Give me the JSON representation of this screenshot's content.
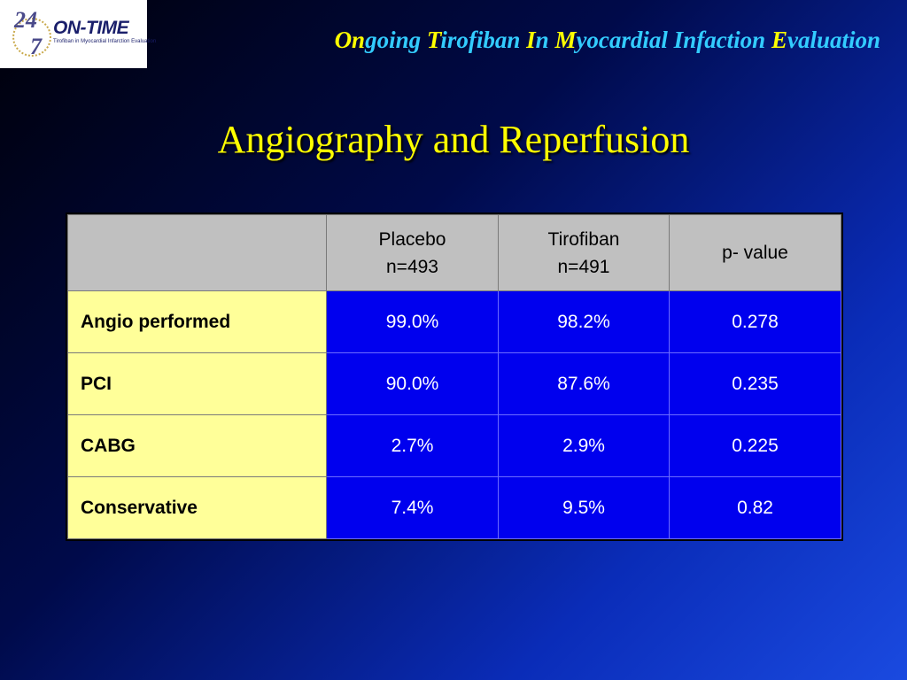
{
  "logo": {
    "number_top": "24",
    "number_bottom": "7",
    "brand": "ON-TIME",
    "tagline": "Tirofiban in Myocardial Infarction Evaluation"
  },
  "acronym": [
    {
      "cap": "On",
      "rest": "going "
    },
    {
      "cap": "T",
      "rest": "irofiban "
    },
    {
      "cap": "I",
      "rest": "n "
    },
    {
      "cap": "M",
      "rest": "yocardial Infaction "
    },
    {
      "cap": "E",
      "rest": "valuation"
    }
  ],
  "title": "Angiography and Reperfusion",
  "table": {
    "headers": [
      {
        "line1": "",
        "line2": ""
      },
      {
        "line1": "Placebo",
        "line2": "n=493"
      },
      {
        "line1": "Tirofiban",
        "line2": "n=491"
      },
      {
        "line1": "p- value",
        "line2": ""
      }
    ],
    "rows": [
      {
        "label": "Angio performed",
        "placebo": "99.0%",
        "tirofiban": "98.2%",
        "p": "0.278"
      },
      {
        "label": "PCI",
        "placebo": "90.0%",
        "tirofiban": "87.6%",
        "p": "0.235"
      },
      {
        "label": "CABG",
        "placebo": "2.7%",
        "tirofiban": "2.9%",
        "p": "0.225"
      },
      {
        "label": "Conservative",
        "placebo": "7.4%",
        "tirofiban": "9.5%",
        "p": "0.82"
      }
    ]
  }
}
